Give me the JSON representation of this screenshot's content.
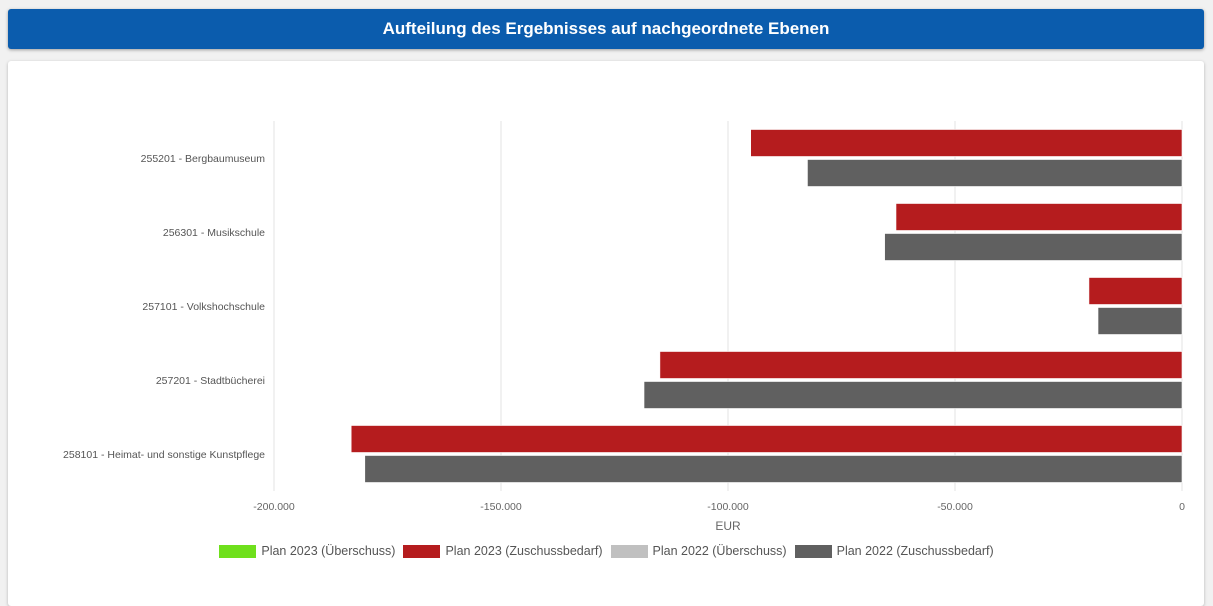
{
  "header": {
    "title": "Aufteilung des Ergebnisses auf nachgeordnete Ebenen"
  },
  "chart_data": {
    "type": "bar",
    "orientation": "horizontal",
    "categories": [
      "255201 - Bergbaumuseum",
      "256301 - Musikschule",
      "257101 - Volkshochschule",
      "257201 - Stadtbücherei",
      "258101 - Heimat- und sonstige Kunstpflege"
    ],
    "series": [
      {
        "name": "Plan 2023 (Überschuss)",
        "color": "#6fe01c",
        "values": [
          0,
          0,
          0,
          0,
          0
        ]
      },
      {
        "name": "Plan 2023 (Zuschussbedarf)",
        "color": "#b51c1e",
        "values": [
          -95000,
          -63000,
          -20500,
          -115000,
          -183000
        ]
      },
      {
        "name": "Plan 2022 (Überschuss)",
        "color": "#c0c0c0",
        "values": [
          0,
          0,
          0,
          0,
          0
        ]
      },
      {
        "name": "Plan 2022 (Zuschussbedarf)",
        "color": "#606060",
        "values": [
          -82500,
          -65500,
          -18500,
          -118500,
          -180000
        ]
      }
    ],
    "xlabel": "EUR",
    "ylabel": "",
    "xlim": [
      -200000,
      0
    ],
    "ticks": [
      {
        "value": -200000,
        "label": "-200.000"
      },
      {
        "value": -150000,
        "label": "-150.000"
      },
      {
        "value": -100000,
        "label": "-100.000"
      },
      {
        "value": -50000,
        "label": "-50.000"
      },
      {
        "value": 0,
        "label": "0"
      }
    ],
    "grid": true,
    "legend_position": "bottom"
  }
}
